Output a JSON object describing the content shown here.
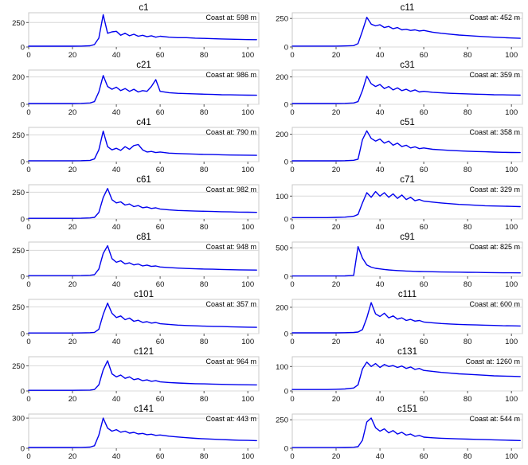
{
  "chart_data": {
    "type": "line",
    "layout": {
      "rows": 8,
      "cols": 2
    },
    "colors": {
      "line": "#0000EE",
      "grid": "#D8D8D8",
      "frame": "#C8C8C8",
      "text": "#000000"
    },
    "xlim": [
      0,
      105
    ],
    "xticks": [
      0,
      20,
      40,
      60,
      80,
      100
    ],
    "shared_x": [
      0,
      4,
      8,
      12,
      16,
      20,
      24,
      28,
      30,
      32,
      34,
      36,
      38,
      40,
      42,
      44,
      46,
      48,
      50,
      52,
      54,
      56,
      58,
      60,
      64,
      68,
      72,
      76,
      80,
      84,
      88,
      92,
      96,
      100,
      104
    ],
    "charts": [
      {
        "title": "c1",
        "annotation": "Coast at: 598 m",
        "ylim": [
          0,
          350
        ],
        "yticks": [
          0,
          250
        ],
        "y": [
          8,
          8,
          8,
          8,
          8,
          8,
          9,
          12,
          25,
          90,
          330,
          140,
          155,
          160,
          120,
          140,
          115,
          130,
          110,
          120,
          105,
          115,
          100,
          110,
          100,
          95,
          95,
          90,
          88,
          85,
          82,
          80,
          78,
          76,
          75
        ]
      },
      {
        "title": "c11",
        "annotation": "Coast at: 452 m",
        "ylim": [
          0,
          300
        ],
        "yticks": [
          0,
          250
        ],
        "y": [
          8,
          8,
          8,
          8,
          8,
          8,
          9,
          12,
          30,
          140,
          260,
          200,
          185,
          195,
          170,
          180,
          160,
          170,
          150,
          155,
          145,
          150,
          140,
          145,
          130,
          120,
          112,
          105,
          100,
          95,
          90,
          86,
          82,
          79,
          76
        ]
      },
      {
        "title": "c21",
        "annotation": "Coast at: 986 m",
        "ylim": [
          0,
          250
        ],
        "yticks": [
          0,
          200
        ],
        "y": [
          6,
          6,
          6,
          6,
          6,
          6,
          7,
          10,
          20,
          90,
          210,
          130,
          110,
          125,
          100,
          115,
          95,
          110,
          90,
          100,
          95,
          130,
          180,
          95,
          85,
          80,
          78,
          76,
          74,
          72,
          70,
          69,
          68,
          67,
          66
        ]
      },
      {
        "title": "c31",
        "annotation": "Coast at: 359 m",
        "ylim": [
          0,
          250
        ],
        "yticks": [
          0,
          200
        ],
        "y": [
          6,
          6,
          6,
          6,
          6,
          6,
          7,
          10,
          20,
          100,
          205,
          150,
          130,
          145,
          115,
          130,
          105,
          120,
          100,
          110,
          95,
          105,
          90,
          95,
          88,
          84,
          80,
          78,
          76,
          74,
          72,
          70,
          69,
          68,
          67
        ]
      },
      {
        "title": "c41",
        "annotation": "Coast at: 790 m",
        "ylim": [
          0,
          320
        ],
        "yticks": [
          0,
          250
        ],
        "y": [
          8,
          8,
          8,
          8,
          8,
          8,
          9,
          12,
          25,
          110,
          285,
          140,
          110,
          125,
          105,
          140,
          115,
          150,
          160,
          110,
          90,
          95,
          85,
          90,
          80,
          76,
          73,
          70,
          68,
          66,
          64,
          62,
          61,
          60,
          59
        ]
      },
      {
        "title": "c51",
        "annotation": "Coast at: 358 m",
        "ylim": [
          0,
          250
        ],
        "yticks": [
          0,
          200
        ],
        "y": [
          6,
          6,
          6,
          6,
          6,
          6,
          7,
          10,
          18,
          160,
          225,
          170,
          150,
          165,
          135,
          150,
          120,
          135,
          110,
          120,
          100,
          108,
          95,
          100,
          90,
          86,
          82,
          79,
          76,
          74,
          72,
          70,
          68,
          67,
          66
        ]
      },
      {
        "title": "c61",
        "annotation": "Coast at: 982 m",
        "ylim": [
          0,
          320
        ],
        "yticks": [
          0,
          250
        ],
        "y": [
          6,
          6,
          6,
          6,
          6,
          6,
          7,
          10,
          15,
          60,
          200,
          285,
          180,
          150,
          160,
          130,
          140,
          115,
          125,
          105,
          112,
          98,
          104,
          92,
          85,
          80,
          77,
          74,
          72,
          70,
          68,
          66,
          64,
          63,
          62
        ]
      },
      {
        "title": "c71",
        "annotation": "Coast at: 329 m",
        "ylim": [
          0,
          150
        ],
        "yticks": [
          0,
          100
        ],
        "y": [
          6,
          6,
          6,
          6,
          6,
          7,
          8,
          12,
          20,
          70,
          115,
          95,
          120,
          100,
          115,
          95,
          110,
          90,
          105,
          85,
          95,
          80,
          85,
          78,
          74,
          70,
          67,
          64,
          62,
          60,
          58,
          57,
          56,
          55,
          54
        ]
      },
      {
        "title": "c81",
        "annotation": "Coast at: 948 m",
        "ylim": [
          0,
          330
        ],
        "yticks": [
          0,
          250
        ],
        "y": [
          6,
          6,
          6,
          6,
          6,
          6,
          7,
          10,
          15,
          70,
          220,
          295,
          170,
          135,
          150,
          120,
          130,
          110,
          118,
          100,
          108,
          95,
          100,
          90,
          84,
          79,
          75,
          72,
          70,
          68,
          66,
          64,
          62,
          61,
          60
        ]
      },
      {
        "title": "c91",
        "annotation": "Coast at: 825 m",
        "ylim": [
          0,
          600
        ],
        "yticks": [
          0,
          500
        ],
        "y": [
          6,
          6,
          6,
          6,
          6,
          6,
          7,
          15,
          520,
          320,
          200,
          160,
          140,
          130,
          120,
          112,
          106,
          100,
          96,
          92,
          89,
          86,
          84,
          82,
          79,
          76,
          74,
          72,
          70,
          68,
          66,
          64,
          62,
          61,
          60
        ]
      },
      {
        "title": "c101",
        "annotation": "Coast at: 357 m",
        "ylim": [
          0,
          320
        ],
        "yticks": [
          0,
          250
        ],
        "y": [
          6,
          6,
          6,
          6,
          6,
          6,
          7,
          9,
          12,
          40,
          180,
          285,
          190,
          150,
          165,
          130,
          145,
          115,
          125,
          105,
          112,
          98,
          104,
          92,
          86,
          80,
          76,
          73,
          70,
          68,
          66,
          64,
          62,
          60,
          59
        ]
      },
      {
        "title": "c111",
        "annotation": "Coast at: 600 m",
        "ylim": [
          0,
          260
        ],
        "yticks": [
          0,
          200
        ],
        "y": [
          6,
          6,
          6,
          6,
          6,
          6,
          7,
          9,
          12,
          30,
          120,
          235,
          150,
          130,
          155,
          120,
          135,
          110,
          120,
          100,
          108,
          95,
          100,
          88,
          82,
          77,
          73,
          70,
          68,
          66,
          64,
          62,
          60,
          59,
          58
        ]
      },
      {
        "title": "c121",
        "annotation": "Coast at: 964 m",
        "ylim": [
          0,
          340
        ],
        "yticks": [
          0,
          250
        ],
        "y": [
          6,
          6,
          6,
          6,
          6,
          6,
          7,
          9,
          14,
          60,
          210,
          300,
          170,
          140,
          158,
          125,
          140,
          112,
          122,
          102,
          110,
          96,
          102,
          90,
          84,
          79,
          75,
          72,
          70,
          68,
          66,
          64,
          62,
          61,
          60
        ]
      },
      {
        "title": "c131",
        "annotation": "Coast at: 1260 m",
        "ylim": [
          0,
          140
        ],
        "yticks": [
          0,
          100
        ],
        "y": [
          6,
          6,
          6,
          6,
          6,
          7,
          8,
          12,
          25,
          90,
          118,
          100,
          112,
          96,
          108,
          100,
          104,
          96,
          102,
          92,
          98,
          88,
          92,
          84,
          80,
          76,
          73,
          70,
          68,
          66,
          64,
          62,
          61,
          60,
          59
        ]
      },
      {
        "title": "c141",
        "annotation": "Coast at: 443 m",
        "ylim": [
          0,
          340
        ],
        "yticks": [
          0,
          300
        ],
        "y": [
          8,
          8,
          8,
          8,
          8,
          8,
          9,
          12,
          25,
          130,
          300,
          200,
          170,
          185,
          160,
          170,
          150,
          158,
          142,
          148,
          135,
          140,
          128,
          132,
          120,
          112,
          105,
          99,
          94,
          90,
          86,
          83,
          80,
          78,
          76
        ]
      },
      {
        "title": "c151",
        "annotation": "Coast at: 544 m",
        "ylim": [
          0,
          300
        ],
        "yticks": [
          0,
          250
        ],
        "y": [
          6,
          6,
          6,
          6,
          6,
          6,
          7,
          9,
          14,
          70,
          230,
          265,
          180,
          150,
          170,
          135,
          155,
          125,
          140,
          115,
          125,
          105,
          112,
          98,
          92,
          88,
          85,
          82,
          80,
          78,
          76,
          74,
          72,
          70,
          68
        ]
      }
    ]
  }
}
